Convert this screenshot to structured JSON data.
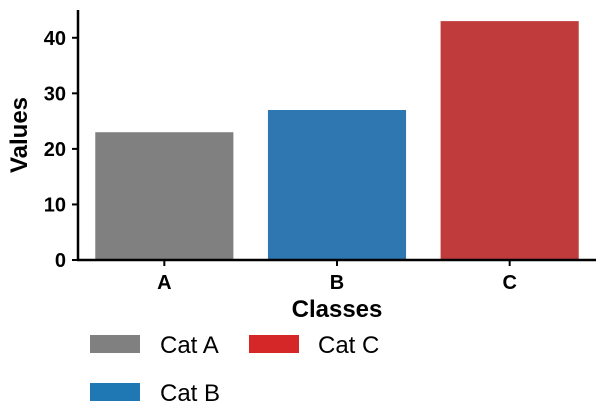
{
  "chart_data": {
    "type": "bar",
    "title": "",
    "xlabel": "Classes",
    "ylabel": "Values",
    "categories": [
      "A",
      "B",
      "C"
    ],
    "values": [
      23,
      27,
      43
    ],
    "bar_colors": [
      "#808080",
      "#2e77b0",
      "#c03c3c"
    ],
    "ylim": [
      0,
      45
    ],
    "yticks": [
      0,
      10,
      20,
      30,
      40
    ],
    "grid": false,
    "legend": {
      "placement": "below",
      "entries": [
        {
          "label": "Cat A",
          "color": "#808080"
        },
        {
          "label": "Cat C",
          "color": "#d62728"
        },
        {
          "label": "Cat B",
          "color": "#1f77b4"
        }
      ]
    }
  }
}
